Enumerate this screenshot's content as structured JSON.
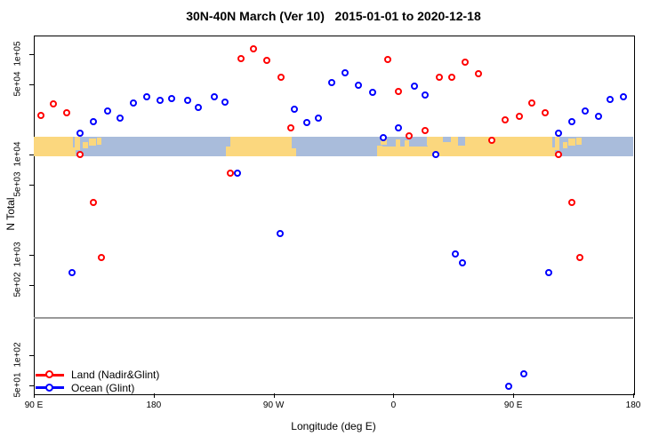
{
  "title": "30N-40N March (Ver 10)   2015-01-01 to 2020-12-18",
  "axes": {
    "x_label": "Longitude (deg E)",
    "y_label": "N Total",
    "x_ticks": [
      {
        "lon": 90,
        "label": "90 E"
      },
      {
        "lon": 180,
        "label": "180"
      },
      {
        "lon": 270,
        "label": "90 W"
      },
      {
        "lon": 360,
        "label": "0"
      },
      {
        "lon": 450,
        "label": "90 E"
      },
      {
        "lon": 540,
        "label": "180"
      }
    ],
    "y_ticks": [
      {
        "value": 100000,
        "label": "1e+05"
      },
      {
        "value": 50000,
        "label": "5e+04"
      },
      {
        "value": 10000,
        "label": "1e+04"
      },
      {
        "value": 5000,
        "label": "5e+03"
      },
      {
        "value": 1000,
        "label": "1e+03"
      },
      {
        "value": 500,
        "label": "5e+02"
      },
      {
        "value": 100,
        "label": "1e+02"
      },
      {
        "value": 50,
        "label": "5e+01"
      }
    ]
  },
  "legend": {
    "items": [
      {
        "label": "Land (Nadir&Glint)",
        "color": "#ff0000"
      },
      {
        "label": "Ocean (Glint)",
        "color": "#0000ff"
      }
    ]
  },
  "colors": {
    "land_point": "#ff0000",
    "ocean_point": "#0000ff",
    "map_land": "#fbd77e",
    "map_ocean": "#a9bcdb",
    "reference_line": "#999999",
    "axis": "#000000"
  },
  "chart_data": {
    "type": "scatter",
    "x_axis": {
      "label": "Longitude (deg E)",
      "range_deg_plot": [
        90,
        540
      ],
      "wrap_note": "axis starts at 90E and wraps through 180, 90W, 0, 90E to 180"
    },
    "y_axis": {
      "label": "N Total",
      "scale": "log10",
      "range": [
        41,
        153000
      ]
    },
    "reference_line_value": 235,
    "map_band": {
      "top_value": 15000,
      "bottom_value": 9600,
      "land_segments": [
        {
          "lon0": 90,
          "lon1": 119.5,
          "v0": 0,
          "v1": 1
        },
        {
          "lon0": 119.5,
          "lon1": 121.5,
          "v0": 0,
          "v1": 0.45
        },
        {
          "lon0": 121,
          "lon1": 124.5,
          "v0": 0.3,
          "v1": 1
        },
        {
          "lon0": 127,
          "lon1": 130.5,
          "v0": 0.4,
          "v1": 0.75
        },
        {
          "lon0": 131.5,
          "lon1": 136.5,
          "v0": 0.55,
          "v1": 0.9
        },
        {
          "lon0": 137.5,
          "lon1": 141,
          "v0": 0.6,
          "v1": 0.95
        },
        {
          "lon0": 234.5,
          "lon1": 237.5,
          "v0": 0,
          "v1": 0.5
        },
        {
          "lon0": 237.5,
          "lon1": 283.5,
          "v0": 0,
          "v1": 1
        },
        {
          "lon0": 283.5,
          "lon1": 287,
          "v0": 0,
          "v1": 0.4
        },
        {
          "lon0": 347.5,
          "lon1": 352,
          "v0": 0,
          "v1": 0.55
        },
        {
          "lon0": 350.5,
          "lon1": 355,
          "v0": 0.6,
          "v1": 1
        },
        {
          "lon0": 352,
          "lon1": 386,
          "v0": 0,
          "v1": 0.5
        },
        {
          "lon0": 386,
          "lon1": 394.5,
          "v0": 0,
          "v1": 0.6
        },
        {
          "lon0": 362,
          "lon1": 365,
          "v0": 0.45,
          "v1": 0.85
        },
        {
          "lon0": 368.5,
          "lon1": 372,
          "v0": 0.45,
          "v1": 0.8
        },
        {
          "lon0": 385,
          "lon1": 404,
          "v0": 0.55,
          "v1": 1
        },
        {
          "lon0": 394.5,
          "lon1": 479.5,
          "v0": 0,
          "v1": 1
        },
        {
          "lon0": 479.5,
          "lon1": 481.5,
          "v0": 0,
          "v1": 0.45
        },
        {
          "lon0": 481,
          "lon1": 484.5,
          "v0": 0.3,
          "v1": 1
        },
        {
          "lon0": 487,
          "lon1": 490.5,
          "v0": 0.4,
          "v1": 0.75
        },
        {
          "lon0": 491.5,
          "lon1": 496.5,
          "v0": 0.55,
          "v1": 0.9
        },
        {
          "lon0": 497.5,
          "lon1": 501,
          "v0": 0.6,
          "v1": 0.95
        }
      ],
      "ocean_patches": [
        {
          "lon0": 397,
          "lon1": 403,
          "v0": 0.75,
          "v1": 1
        },
        {
          "lon0": 408.5,
          "lon1": 414,
          "v0": 0.55,
          "v1": 1
        }
      ]
    },
    "series": [
      {
        "name": "Land (Nadir&Glint)",
        "color": "#ff0000",
        "points": [
          [
            96,
            24500
          ],
          [
            105,
            31900
          ],
          [
            115,
            26000
          ],
          [
            125,
            9800
          ],
          [
            135,
            3300
          ],
          [
            141,
            940
          ],
          [
            238,
            6500
          ],
          [
            246,
            90000
          ],
          [
            255,
            113000
          ],
          [
            265,
            85000
          ],
          [
            276,
            58000
          ],
          [
            283,
            18400
          ],
          [
            356,
            87000
          ],
          [
            364,
            42000
          ],
          [
            372,
            15300
          ],
          [
            384,
            17300
          ],
          [
            395,
            58000
          ],
          [
            404,
            58000
          ],
          [
            414,
            83000
          ],
          [
            424,
            63000
          ],
          [
            434,
            13600
          ],
          [
            444,
            22000
          ],
          [
            455,
            24000
          ],
          [
            464,
            32000
          ],
          [
            474,
            26000
          ],
          [
            484,
            9800
          ],
          [
            494,
            3300
          ],
          [
            500,
            940
          ]
        ]
      },
      {
        "name": "Ocean (Glint)",
        "color": "#0000ff",
        "points": [
          [
            119,
            665
          ],
          [
            125,
            16000
          ],
          [
            135,
            21000
          ],
          [
            146,
            26600
          ],
          [
            155,
            23000
          ],
          [
            165,
            32000
          ],
          [
            175,
            37000
          ],
          [
            185,
            34000
          ],
          [
            194,
            36000
          ],
          [
            206,
            34000
          ],
          [
            214,
            29000
          ],
          [
            226,
            37500
          ],
          [
            234,
            33000
          ],
          [
            243,
            6500
          ],
          [
            275,
            1600
          ],
          [
            286,
            27700
          ],
          [
            295,
            20800
          ],
          [
            304,
            23000
          ],
          [
            314,
            52000
          ],
          [
            324,
            64000
          ],
          [
            334,
            49000
          ],
          [
            345,
            41000
          ],
          [
            353,
            14700
          ],
          [
            364,
            18400
          ],
          [
            376,
            48000
          ],
          [
            384,
            38400
          ],
          [
            392,
            9800
          ],
          [
            407,
            1020
          ],
          [
            412,
            830
          ],
          [
            447,
            49
          ],
          [
            458,
            64
          ],
          [
            477,
            655
          ],
          [
            484,
            16000
          ],
          [
            494,
            21000
          ],
          [
            504,
            27000
          ],
          [
            514,
            24000
          ],
          [
            523,
            35000
          ],
          [
            533,
            37000
          ]
        ]
      }
    ]
  }
}
